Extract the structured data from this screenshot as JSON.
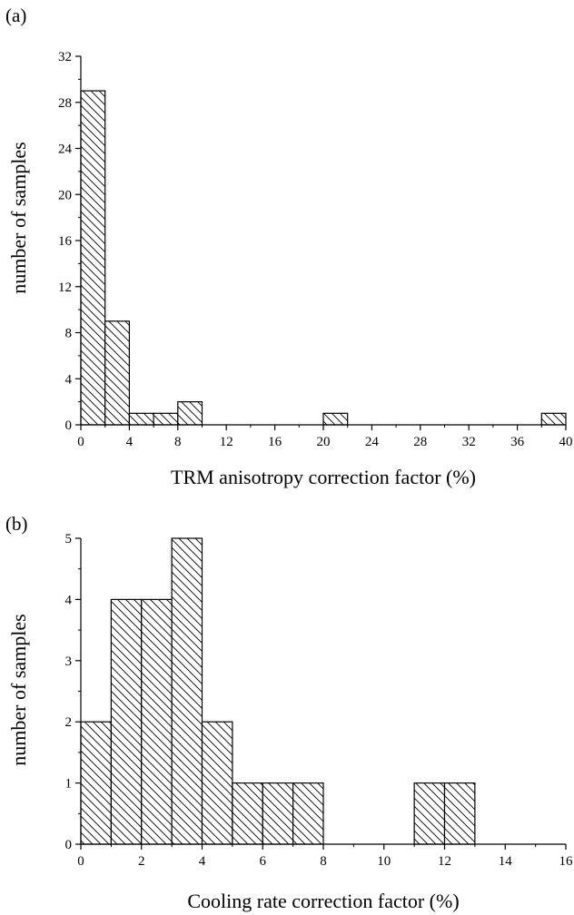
{
  "chart_data": [
    {
      "type": "bar",
      "panel_label": "(a)",
      "xlabel": "TRM anisotropy correction factor (%)",
      "ylabel": "number of samples",
      "xlim": [
        0,
        40
      ],
      "ylim": [
        0,
        32
      ],
      "xticks": [
        "0",
        "4",
        "8",
        "12",
        "16",
        "20",
        "24",
        "28",
        "32",
        "36",
        "40"
      ],
      "yticks": [
        "0",
        "4",
        "8",
        "12",
        "16",
        "20",
        "24",
        "28",
        "32"
      ],
      "bin_width": 2,
      "bins": [
        {
          "x0": 0,
          "x1": 2,
          "value": 29
        },
        {
          "x0": 2,
          "x1": 4,
          "value": 9
        },
        {
          "x0": 4,
          "x1": 6,
          "value": 1
        },
        {
          "x0": 6,
          "x1": 8,
          "value": 1
        },
        {
          "x0": 8,
          "x1": 10,
          "value": 2
        },
        {
          "x0": 20,
          "x1": 22,
          "value": 1
        },
        {
          "x0": 38,
          "x1": 40,
          "value": 1
        }
      ],
      "grid": false,
      "fill": "diagonal hatch"
    },
    {
      "type": "bar",
      "panel_label": "(b)",
      "xlabel": "Cooling rate correction factor (%)",
      "ylabel": "number of samples",
      "xlim": [
        0,
        16
      ],
      "ylim": [
        0,
        5
      ],
      "xticks": [
        "0",
        "2",
        "4",
        "6",
        "8",
        "10",
        "12",
        "14",
        "16"
      ],
      "yticks": [
        "0",
        "1",
        "2",
        "3",
        "4",
        "5"
      ],
      "bin_width": 1,
      "bins": [
        {
          "x0": 0,
          "x1": 1,
          "value": 2
        },
        {
          "x0": 1,
          "x1": 2,
          "value": 4
        },
        {
          "x0": 2,
          "x1": 3,
          "value": 4
        },
        {
          "x0": 3,
          "x1": 4,
          "value": 5
        },
        {
          "x0": 4,
          "x1": 5,
          "value": 2
        },
        {
          "x0": 5,
          "x1": 6,
          "value": 1
        },
        {
          "x0": 6,
          "x1": 7,
          "value": 1
        },
        {
          "x0": 7,
          "x1": 8,
          "value": 1
        },
        {
          "x0": 11,
          "x1": 12,
          "value": 1
        },
        {
          "x0": 12,
          "x1": 13,
          "value": 1
        }
      ],
      "grid": false,
      "fill": "diagonal hatch"
    }
  ]
}
